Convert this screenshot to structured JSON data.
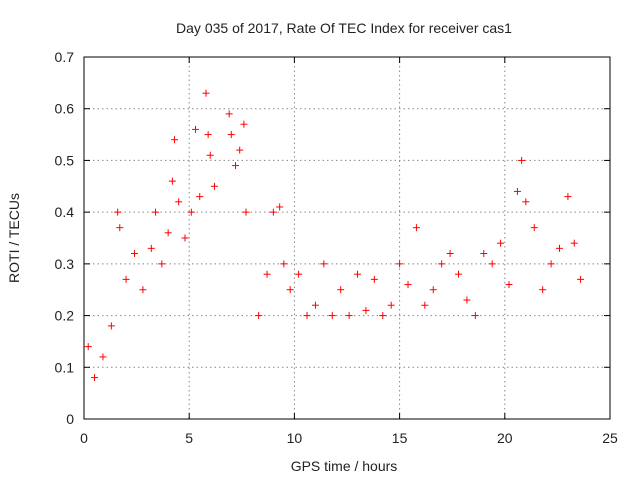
{
  "chart_data": {
    "type": "scatter",
    "title": "Day 035 of 2017, Rate Of TEC Index for receiver cas1",
    "xlabel": "GPS time / hours",
    "ylabel": "ROTI / TECUs",
    "xlim": [
      0,
      25
    ],
    "ylim": [
      0,
      0.7
    ],
    "xticks": [
      0,
      5,
      10,
      15,
      20,
      25
    ],
    "yticks": [
      0,
      0.1,
      0.2,
      0.3,
      0.4,
      0.5,
      0.6,
      0.7
    ],
    "grid": true,
    "marker": "+",
    "color": "#ff0000",
    "series": [
      {
        "name": "cas1",
        "x": [
          0.2,
          0.5,
          0.9,
          1.3,
          1.6,
          1.7,
          2.0,
          2.4,
          2.8,
          3.2,
          3.4,
          3.7,
          4.0,
          4.2,
          4.3,
          4.5,
          4.8,
          5.1,
          5.3,
          5.5,
          5.8,
          5.9,
          6.0,
          6.2,
          6.9,
          7.0,
          7.2,
          7.4,
          7.6,
          7.7,
          8.3,
          8.7,
          9.0,
          9.3,
          9.5,
          9.8,
          10.2,
          10.6,
          11.0,
          11.4,
          11.8,
          12.2,
          12.6,
          13.0,
          13.4,
          13.8,
          14.2,
          14.6,
          15.0,
          15.4,
          15.8,
          16.2,
          16.6,
          17.0,
          17.4,
          17.8,
          18.2,
          18.6,
          19.0,
          19.4,
          19.8,
          20.2,
          20.6,
          20.8,
          21.0,
          21.4,
          21.8,
          22.2,
          22.6,
          23.0,
          23.3,
          23.6
        ],
        "y": [
          0.14,
          0.08,
          0.12,
          0.18,
          0.4,
          0.37,
          0.27,
          0.32,
          0.25,
          0.33,
          0.4,
          0.3,
          0.36,
          0.46,
          0.54,
          0.42,
          0.35,
          0.4,
          0.56,
          0.43,
          0.63,
          0.55,
          0.51,
          0.45,
          0.59,
          0.55,
          0.49,
          0.52,
          0.57,
          0.4,
          0.2,
          0.28,
          0.4,
          0.41,
          0.3,
          0.25,
          0.28,
          0.2,
          0.22,
          0.3,
          0.2,
          0.25,
          0.2,
          0.28,
          0.21,
          0.27,
          0.2,
          0.22,
          0.3,
          0.26,
          0.37,
          0.22,
          0.25,
          0.3,
          0.32,
          0.28,
          0.23,
          0.2,
          0.32,
          0.3,
          0.34,
          0.26,
          0.44,
          0.5,
          0.42,
          0.37,
          0.25,
          0.3,
          0.33,
          0.43,
          0.34,
          0.27
        ]
      }
    ]
  }
}
